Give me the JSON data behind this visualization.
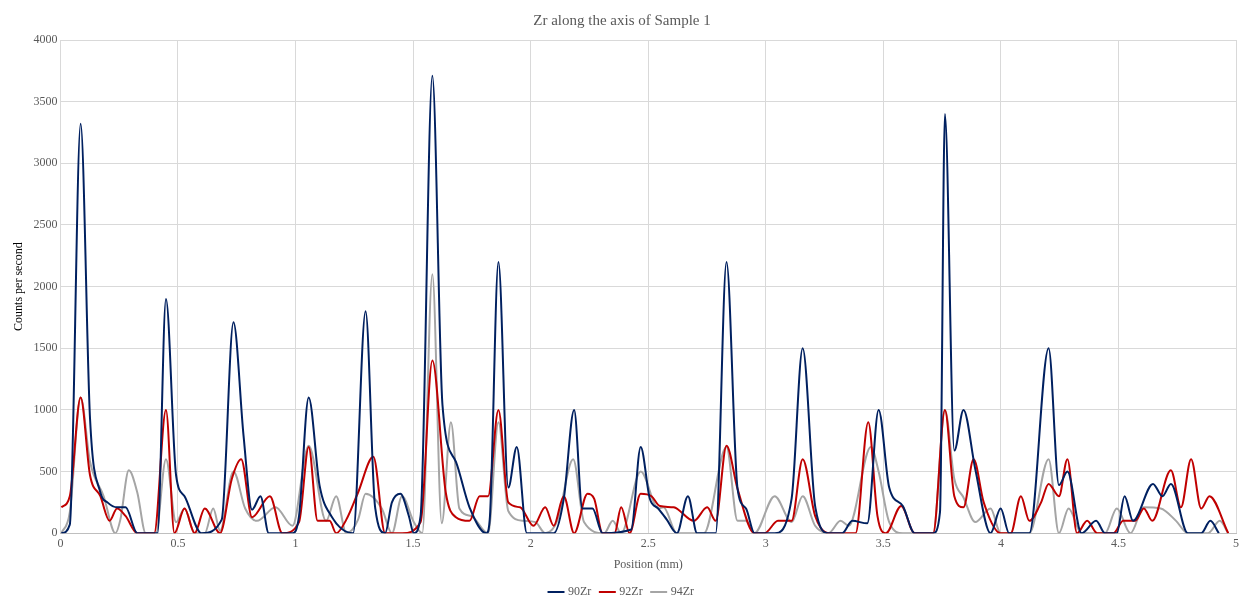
{
  "chart_data": {
    "type": "line",
    "title": "Zr along the axis of Sample 1",
    "xlabel": "Position (mm)",
    "ylabel": "Counts per second",
    "xlim": [
      0,
      5
    ],
    "xticks": [
      0,
      0.5,
      1,
      1.5,
      2,
      2.5,
      3,
      3.5,
      4,
      4.5,
      5
    ],
    "ylim": [
      0,
      4000
    ],
    "yticks": [
      0,
      500,
      1000,
      1500,
      2000,
      2500,
      3000,
      3500,
      4000
    ],
    "grid": true,
    "legend": "bottom",
    "marker": "none",
    "line_style": "solid",
    "series": [
      {
        "name": "90Zr",
        "color": "#002060",
        "x": [
          0.004,
          0.04,
          0.086,
          0.126,
          0.17,
          0.2,
          0.241,
          0.277,
          0.327,
          0.413,
          0.449,
          0.492,
          0.528,
          0.6,
          0.686,
          0.736,
          0.779,
          0.815,
          0.851,
          0.886,
          0.987,
          1.015,
          1.056,
          1.102,
          1.152,
          1.245,
          1.298,
          1.338,
          1.381,
          1.41,
          1.446,
          1.482,
          1.503,
          1.532,
          1.582,
          1.625,
          1.682,
          1.74,
          1.812,
          1.826,
          1.863,
          1.905,
          1.941,
          1.984,
          2.098,
          2.141,
          2.185,
          2.22,
          2.263,
          2.306,
          2.428,
          2.468,
          2.507,
          2.543,
          2.579,
          2.622,
          2.669,
          2.708,
          2.787,
          2.833,
          2.88,
          2.916,
          2.952,
          3.038,
          3.11,
          3.157,
          3.21,
          3.267,
          3.325,
          3.368,
          3.432,
          3.48,
          3.525,
          3.583,
          3.633,
          3.712,
          3.741,
          3.762,
          3.802,
          3.841,
          3.891,
          3.956,
          3.999,
          4.035,
          4.121,
          4.203,
          4.247,
          4.283,
          4.343,
          4.405,
          4.443,
          4.493,
          4.526,
          4.562,
          4.647,
          4.687,
          4.723,
          4.795,
          4.852,
          4.891,
          4.927
        ],
        "values": [
          0,
          70,
          3320,
          930,
          330,
          250,
          210,
          210,
          0,
          0,
          1900,
          470,
          300,
          0,
          110,
          1710,
          790,
          190,
          300,
          0,
          0,
          140,
          1100,
          390,
          140,
          0,
          1800,
          220,
          0,
          250,
          320,
          140,
          0,
          140,
          3710,
          1040,
          580,
          210,
          0,
          110,
          2200,
          370,
          700,
          0,
          0,
          280,
          1000,
          200,
          200,
          0,
          30,
          700,
          280,
          200,
          110,
          0,
          300,
          0,
          0,
          2200,
          360,
          200,
          0,
          0,
          280,
          1500,
          220,
          0,
          0,
          100,
          80,
          1000,
          370,
          220,
          0,
          0,
          170,
          3400,
          670,
          1000,
          520,
          0,
          200,
          0,
          0,
          1500,
          390,
          500,
          0,
          100,
          0,
          0,
          300,
          100,
          400,
          300,
          400,
          0,
          0,
          100,
          0
        ]
      },
      {
        "name": "92Zr",
        "color": "#c00000",
        "x": [
          0.004,
          0.04,
          0.086,
          0.126,
          0.17,
          0.209,
          0.241,
          0.277,
          0.327,
          0.399,
          0.449,
          0.485,
          0.528,
          0.571,
          0.614,
          0.679,
          0.729,
          0.769,
          0.815,
          0.891,
          0.944,
          1.015,
          1.056,
          1.094,
          1.145,
          1.173,
          1.216,
          1.266,
          1.331,
          1.381,
          1.453,
          1.532,
          1.582,
          1.639,
          1.682,
          1.74,
          1.783,
          1.819,
          1.863,
          1.905,
          1.955,
          2.012,
          2.062,
          2.098,
          2.141,
          2.185,
          2.242,
          2.27,
          2.306,
          2.357,
          2.385,
          2.421,
          2.468,
          2.514,
          2.55,
          2.608,
          2.694,
          2.751,
          2.787,
          2.833,
          2.88,
          2.952,
          2.995,
          3.052,
          3.11,
          3.157,
          3.21,
          3.267,
          3.382,
          3.436,
          3.475,
          3.511,
          3.576,
          3.633,
          3.712,
          3.762,
          3.802,
          3.841,
          3.884,
          3.927,
          3.999,
          4.042,
          4.085,
          4.121,
          4.171,
          4.203,
          4.247,
          4.283,
          4.324,
          4.367,
          4.41,
          4.479,
          4.52,
          4.572,
          4.608,
          4.644,
          4.723,
          4.766,
          4.809,
          4.852,
          4.887,
          4.967
        ],
        "values": [
          210,
          300,
          1100,
          470,
          300,
          100,
          200,
          140,
          0,
          0,
          1000,
          0,
          200,
          0,
          200,
          0,
          440,
          600,
          130,
          300,
          0,
          90,
          700,
          100,
          100,
          0,
          110,
          330,
          620,
          0,
          0,
          90,
          1400,
          330,
          130,
          100,
          300,
          300,
          1000,
          250,
          210,
          60,
          210,
          60,
          300,
          0,
          320,
          280,
          0,
          0,
          210,
          0,
          320,
          300,
          220,
          210,
          100,
          210,
          100,
          710,
          360,
          0,
          0,
          100,
          100,
          600,
          140,
          0,
          0,
          900,
          140,
          0,
          220,
          0,
          0,
          1000,
          300,
          210,
          600,
          250,
          0,
          0,
          300,
          100,
          250,
          400,
          300,
          600,
          0,
          100,
          0,
          0,
          100,
          100,
          200,
          100,
          510,
          210,
          600,
          200,
          300,
          0
        ]
      },
      {
        "name": "94Zr",
        "color": "#a5a5a5",
        "x": [
          0.004,
          0.04,
          0.086,
          0.126,
          0.184,
          0.234,
          0.255,
          0.291,
          0.327,
          0.363,
          0.406,
          0.449,
          0.492,
          0.528,
          0.571,
          0.614,
          0.65,
          0.679,
          0.736,
          0.786,
          0.836,
          0.915,
          0.987,
          1.056,
          1.13,
          1.173,
          1.216,
          1.266,
          1.298,
          1.367,
          1.41,
          1.453,
          1.503,
          1.539,
          1.582,
          1.622,
          1.661,
          1.697,
          1.747,
          1.819,
          1.863,
          1.905,
          1.969,
          2.02,
          2.062,
          2.113,
          2.181,
          2.227,
          2.313,
          2.349,
          2.385,
          2.468,
          2.543,
          2.565,
          2.622,
          2.737,
          2.833,
          2.88,
          2.916,
          2.952,
          3.038,
          3.11,
          3.157,
          3.21,
          3.267,
          3.318,
          3.353,
          3.447,
          3.48,
          3.525,
          3.583,
          3.712,
          3.762,
          3.802,
          3.841,
          3.891,
          3.956,
          3.999,
          4.121,
          4.203,
          4.247,
          4.288,
          4.343,
          4.443,
          4.493,
          4.551,
          4.608,
          4.68,
          4.745,
          4.795,
          4.881,
          4.931,
          4.967
        ],
        "values": [
          0,
          170,
          1100,
          580,
          300,
          0,
          110,
          510,
          330,
          0,
          0,
          600,
          90,
          200,
          0,
          0,
          200,
          20,
          500,
          200,
          100,
          210,
          60,
          710,
          100,
          300,
          0,
          110,
          320,
          200,
          0,
          300,
          90,
          0,
          2100,
          80,
          900,
          200,
          140,
          0,
          900,
          180,
          100,
          90,
          0,
          100,
          600,
          90,
          0,
          100,
          0,
          500,
          200,
          210,
          0,
          0,
          700,
          100,
          100,
          0,
          300,
          90,
          300,
          60,
          0,
          100,
          60,
          700,
          500,
          90,
          0,
          0,
          1000,
          440,
          290,
          90,
          200,
          0,
          0,
          600,
          0,
          200,
          0,
          0,
          200,
          0,
          210,
          200,
          100,
          0,
          0,
          100,
          0
        ]
      }
    ]
  }
}
